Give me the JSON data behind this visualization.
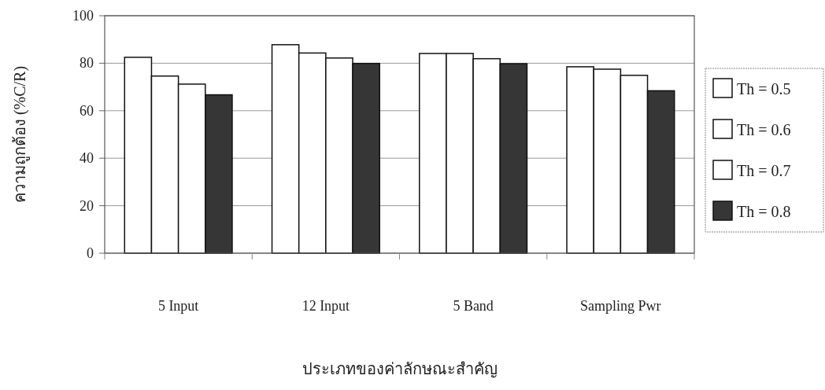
{
  "chart_data": {
    "type": "bar",
    "xlabel": "ประเภทของค่าลักษณะสำคัญ",
    "ylabel": "ความถูกต้อง (%C/R)",
    "categories": [
      "5 Input",
      "12 Input",
      "5 Band",
      "Sampling Pwr"
    ],
    "series": [
      {
        "name": "Th = 0.5",
        "color": "#ffffff",
        "values": [
          82.5,
          87.8,
          84.1,
          78.5
        ]
      },
      {
        "name": "Th = 0.6",
        "color": "#ffffff",
        "values": [
          74.6,
          84.3,
          84.1,
          77.5
        ]
      },
      {
        "name": "Th = 0.7",
        "color": "#ffffff",
        "values": [
          71.2,
          82.2,
          81.9,
          74.9
        ]
      },
      {
        "name": "Th = 0.8",
        "color": "#363636",
        "values": [
          66.7,
          79.9,
          79.8,
          68.4
        ]
      }
    ],
    "ylim": [
      0,
      100
    ],
    "yticks": [
      0,
      20,
      40,
      60,
      80,
      100
    ],
    "grid": "y",
    "legend": "right"
  }
}
